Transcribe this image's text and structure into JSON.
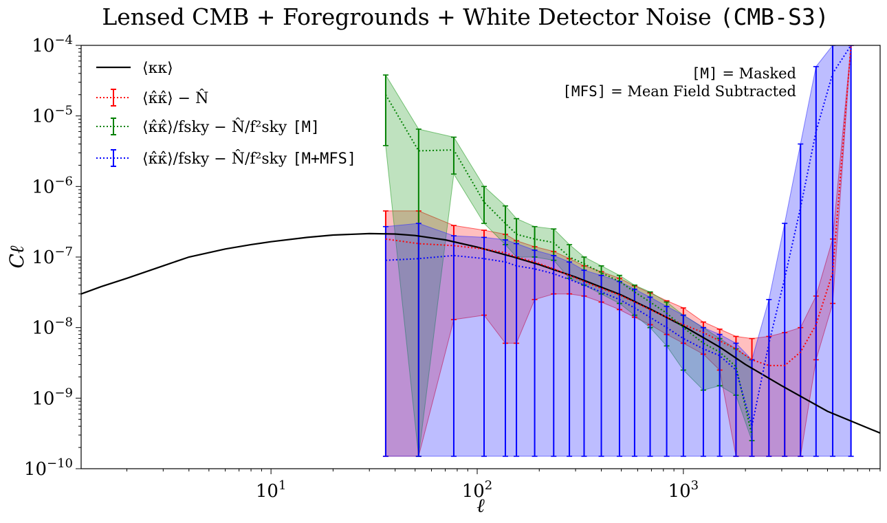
{
  "chart_data": {
    "type": "line",
    "title": "Lensed CMB + Foregrounds + White Detector Noise",
    "title_tag": "(CMB-S3)",
    "xlabel": "ℓ",
    "ylabel": "Cℓ",
    "xscale": "log",
    "yscale": "log",
    "xlim": [
      1.2,
      9000
    ],
    "ylim": [
      1e-10,
      0.0001
    ],
    "legend_position": "top-left",
    "x_ticks": [
      {
        "value": 10,
        "mant": "10",
        "exp": "1"
      },
      {
        "value": 100,
        "mant": "10",
        "exp": "2"
      },
      {
        "value": 1000,
        "mant": "10",
        "exp": "3"
      }
    ],
    "y_ticks": [
      {
        "value": 1e-10,
        "mant": "10",
        "exp": "−10"
      },
      {
        "value": 1e-09,
        "mant": "10",
        "exp": "−9"
      },
      {
        "value": 1e-08,
        "mant": "10",
        "exp": "−8"
      },
      {
        "value": 1e-07,
        "mant": "10",
        "exp": "−7"
      },
      {
        "value": 1e-06,
        "mant": "10",
        "exp": "−6"
      },
      {
        "value": 1e-05,
        "mant": "10",
        "exp": "−5"
      },
      {
        "value": 0.0001,
        "mant": "10",
        "exp": "−4"
      }
    ],
    "annotations": [
      {
        "tag": "[M]",
        "text": " = Masked"
      },
      {
        "tag": "[MFS]",
        "text": " = Mean Field Subtracted"
      }
    ],
    "theory": {
      "name": "⟨κκ⟩",
      "color": "#000000",
      "x": [
        1.2,
        1.5,
        2,
        3,
        4,
        6,
        8,
        10,
        15,
        20,
        30,
        40,
        50,
        70,
        100,
        150,
        200,
        300,
        500,
        700,
        1000,
        1500,
        2000,
        3000,
        5000,
        9000
      ],
      "y": [
        3e-08,
        3.8e-08,
        5e-08,
        7.5e-08,
        1e-07,
        1.3e-07,
        1.5e-07,
        1.65e-07,
        1.9e-07,
        2.05e-07,
        2.15e-07,
        2.12e-07,
        2.02e-07,
        1.75e-07,
        1.38e-07,
        1e-07,
        7.8e-08,
        5.2e-08,
        2.9e-08,
        1.8e-08,
        1.05e-08,
        5.3e-09,
        3e-09,
        1.5e-09,
        6.5e-10,
        3.2e-10
      ]
    },
    "series": [
      {
        "name": "⟨κ̂κ̂⟩ − N̂",
        "tag": "",
        "color": "#ff0000",
        "fill": "#ff0000",
        "fill_opacity": 0.25,
        "x": [
          36,
          52,
          77,
          108,
          137,
          155,
          190,
          235,
          280,
          330,
          400,
          490,
          580,
          690,
          830,
          1000,
          1250,
          1500,
          1800,
          2150,
          2600,
          3100,
          3700,
          4400,
          5300,
          6500
        ],
        "y": [
          1.8e-07,
          1.55e-07,
          1.45e-07,
          1.3e-07,
          1.15e-07,
          1e-07,
          8.5e-08,
          6.8e-08,
          5.5e-08,
          4.5e-08,
          3.6e-08,
          2.9e-08,
          2.3e-08,
          1.8e-08,
          1.4e-08,
          1.1e-08,
          8.5e-09,
          6.5e-09,
          5e-09,
          3.5e-09,
          2.9e-09,
          2.9e-09,
          4.5e-09,
          1.1e-08,
          6e-08,
          0.0001
        ],
        "lo": [
          1.5e-10,
          1.5e-10,
          1.3e-08,
          1.5e-08,
          6e-09,
          6e-09,
          2.5e-08,
          3e-08,
          3e-08,
          2.8e-08,
          2.3e-08,
          1.8e-08,
          1.4e-08,
          1.1e-08,
          8e-09,
          6e-09,
          4.2e-09,
          2.5e-09,
          1.5e-10,
          1.5e-10,
          1.5e-10,
          1.5e-10,
          1.5e-10,
          3.5e-09,
          2.2e-08,
          0.0001
        ],
        "hi": [
          4.5e-07,
          4.5e-07,
          2.8e-07,
          2.4e-07,
          2.1e-07,
          1.7e-07,
          1.4e-07,
          1.2e-07,
          9.5e-08,
          7.5e-08,
          6.2e-08,
          5e-08,
          3.9e-08,
          3.1e-08,
          2.4e-08,
          1.9e-08,
          1.2e-08,
          9.5e-09,
          7.5e-09,
          7e-09,
          7.5e-09,
          8.5e-09,
          1e-08,
          2.8e-08,
          1.8e-07,
          0.0001
        ]
      },
      {
        "name": "⟨κ̂κ̂⟩/fsky − N̂/f²sky",
        "tag": "[M]",
        "color": "#008000",
        "fill": "#2ca02c",
        "fill_opacity": 0.3,
        "x": [
          36,
          52,
          77,
          108,
          137,
          155,
          190,
          235,
          280,
          330,
          400,
          490,
          580,
          690,
          830,
          1000,
          1250,
          1500,
          1800,
          2150
        ],
        "y": [
          2e-05,
          3.2e-06,
          3.3e-06,
          6e-07,
          3e-07,
          2.1e-07,
          1.8e-07,
          1.6e-07,
          1e-07,
          8e-08,
          6e-08,
          4.5e-08,
          3.2e-08,
          2.3e-08,
          1.6e-08,
          1e-08,
          6e-09,
          4.5e-09,
          2.8e-09,
          3e-10
        ],
        "lo": [
          3.8e-06,
          1.5e-10,
          1.5e-06,
          3e-07,
          1.5e-07,
          1e-07,
          1e-07,
          9e-08,
          5e-08,
          4e-08,
          3e-08,
          2.2e-08,
          1.5e-08,
          1e-08,
          5.5e-09,
          2.5e-09,
          1.3e-09,
          1.5e-09,
          1.1e-09,
          2.5e-10
        ],
        "hi": [
          3.8e-05,
          6.5e-06,
          5e-06,
          1e-06,
          5.3e-07,
          3.5e-07,
          2.7e-07,
          2.5e-07,
          1.5e-07,
          1e-07,
          7.5e-08,
          5.5e-08,
          4e-08,
          3.2e-08,
          2.3e-08,
          1.5e-08,
          1e-08,
          7e-09,
          5e-09,
          3.5e-09
        ]
      },
      {
        "name": "⟨κ̂κ̂⟩/fsky − N̂/f²sky",
        "tag": "[M+MFS]",
        "color": "#0000ff",
        "fill": "#3333ff",
        "fill_opacity": 0.32,
        "x": [
          36,
          52,
          77,
          108,
          137,
          155,
          190,
          235,
          280,
          330,
          400,
          490,
          580,
          690,
          830,
          1000,
          1250,
          1500,
          1800,
          2150,
          2600,
          3100,
          3700,
          4400,
          5300,
          6500
        ],
        "y": [
          9e-08,
          9.5e-08,
          1.05e-07,
          9.5e-08,
          8.5e-08,
          7.5e-08,
          6.8e-08,
          5.8e-08,
          4.8e-08,
          4e-08,
          3.2e-08,
          2.5e-08,
          1.9e-08,
          1.4e-08,
          1e-08,
          7e-09,
          5e-09,
          4e-09,
          2.5e-09,
          4e-10,
          6e-09,
          5e-08,
          5e-07,
          6e-06,
          4e-05,
          0.0001
        ],
        "lo": [
          1.5e-10,
          1.5e-10,
          1.5e-10,
          1.5e-10,
          1.5e-10,
          1.5e-10,
          1.5e-10,
          1.5e-10,
          1.5e-10,
          1.5e-10,
          1.5e-10,
          1.5e-10,
          1.5e-10,
          1.5e-10,
          1.5e-10,
          1.5e-10,
          1.5e-10,
          1.5e-10,
          1.5e-10,
          1.5e-10,
          1.5e-10,
          1.5e-10,
          1.5e-10,
          1.5e-10,
          1.5e-10,
          1.5e-10
        ],
        "hi": [
          2.7e-07,
          3e-07,
          2e-07,
          1.9e-07,
          1.75e-07,
          1.55e-07,
          1.25e-07,
          1.05e-07,
          8.5e-08,
          6.5e-08,
          5.5e-08,
          4.5e-08,
          3.5e-08,
          2.7e-08,
          2e-08,
          1.5e-08,
          1e-08,
          8e-09,
          6e-09,
          3.5e-09,
          2.5e-08,
          3e-07,
          4e-06,
          5e-05,
          0.0001,
          0.0001
        ]
      }
    ]
  }
}
